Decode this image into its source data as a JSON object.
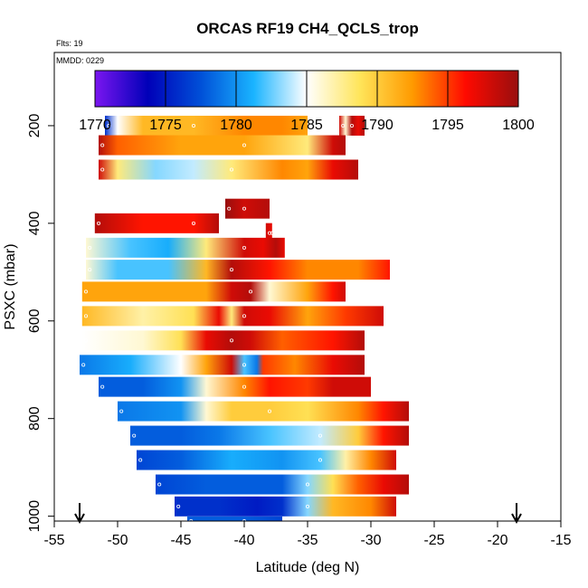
{
  "chart_data": {
    "type": "heatmap",
    "title": "ORCAS RF19 CH4_QCLS_trop",
    "flights_label": "Flts: 19",
    "date_label": "MMDD: 0229",
    "xlabel": "Latitude (deg N)",
    "ylabel": "PSXC (mbar)",
    "xlim": [
      -55,
      -15
    ],
    "ylim": [
      1010,
      50
    ],
    "xticks": [
      -55,
      -50,
      -45,
      -40,
      -35,
      -30,
      -25,
      -20,
      -15
    ],
    "yticks": [
      200,
      400,
      600,
      800,
      1000
    ],
    "colorbar": {
      "min": 1770,
      "max": 1800,
      "ticks": [
        1770,
        1775,
        1780,
        1785,
        1790,
        1795,
        1800
      ],
      "colors": [
        "#7b16f0",
        "#0000b8",
        "#0050d8",
        "#1ab4ff",
        "#ffffff",
        "#ffe55a",
        "#ff9a00",
        "#ff0a00",
        "#980e0e"
      ]
    },
    "arrows_lat": [
      -53.0,
      -18.5
    ],
    "layers": [
      {
        "pres": 200,
        "stops": [
          [
            -51,
            1776
          ],
          [
            -50,
            1785
          ],
          [
            -48,
            1791
          ],
          [
            -44,
            1791
          ],
          [
            -40,
            1793
          ],
          [
            -37,
            1793
          ],
          [
            -35,
            1792
          ]
        ]
      },
      {
        "pres": 200,
        "stops": [
          [
            -32.5,
            1798
          ],
          [
            -32,
            1786
          ],
          [
            -31.5,
            1799
          ],
          [
            -31,
            1797
          ],
          [
            -30.5,
            1799
          ]
        ]
      },
      {
        "pres": 240,
        "stops": [
          [
            -51.5,
            1799
          ],
          [
            -50,
            1794
          ],
          [
            -45,
            1792
          ],
          [
            -40,
            1792
          ],
          [
            -35,
            1788
          ],
          [
            -33,
            1798
          ],
          [
            -32,
            1799
          ]
        ]
      },
      {
        "pres": 290,
        "stops": [
          [
            -51.5,
            1798
          ],
          [
            -50,
            1788
          ],
          [
            -47,
            1783
          ],
          [
            -44,
            1784
          ],
          [
            -41,
            1788
          ],
          [
            -37,
            1793
          ],
          [
            -35,
            1792
          ],
          [
            -33,
            1797
          ],
          [
            -31,
            1799
          ]
        ]
      },
      {
        "pres": 370,
        "stops": [
          [
            -41.5,
            1800
          ],
          [
            -40,
            1798
          ],
          [
            -38,
            1799
          ]
        ]
      },
      {
        "pres": 400,
        "stops": [
          [
            -51.8,
            1799
          ],
          [
            -48,
            1796
          ],
          [
            -44,
            1796
          ],
          [
            -42,
            1799
          ]
        ]
      },
      {
        "pres": 420,
        "stops": [
          [
            -38.3,
            1798
          ],
          [
            -37.8,
            1797
          ]
        ]
      },
      {
        "pres": 450,
        "stops": [
          [
            -52.5,
            1786
          ],
          [
            -49,
            1782
          ],
          [
            -46,
            1781
          ],
          [
            -43,
            1788
          ],
          [
            -40,
            1798
          ],
          [
            -38.5,
            1797
          ],
          [
            -37.5,
            1799
          ],
          [
            -36.8,
            1797
          ]
        ]
      },
      {
        "pres": 495,
        "stops": [
          [
            -52.5,
            1786
          ],
          [
            -50,
            1782
          ],
          [
            -46,
            1782
          ],
          [
            -43,
            1791
          ],
          [
            -41,
            1799
          ],
          [
            -38,
            1796
          ],
          [
            -35,
            1793
          ],
          [
            -31,
            1793
          ],
          [
            -28.5,
            1796
          ]
        ]
      },
      {
        "pres": 540,
        "stops": [
          [
            -52.8,
            1792
          ],
          [
            -47,
            1792
          ],
          [
            -43,
            1792
          ],
          [
            -41,
            1798
          ],
          [
            -39.5,
            1799
          ],
          [
            -38,
            1786
          ],
          [
            -35,
            1792
          ],
          [
            -33,
            1796
          ],
          [
            -32,
            1798
          ]
        ]
      },
      {
        "pres": 590,
        "stops": [
          [
            -52.8,
            1791
          ],
          [
            -48,
            1787
          ],
          [
            -44,
            1789
          ],
          [
            -42,
            1797
          ],
          [
            -41,
            1788
          ],
          [
            -40,
            1798
          ],
          [
            -38,
            1797
          ],
          [
            -35,
            1792
          ],
          [
            -32,
            1795
          ],
          [
            -29,
            1798
          ]
        ]
      },
      {
        "pres": 640,
        "stops": [
          [
            -52.8,
            1785
          ],
          [
            -48,
            1786
          ],
          [
            -45,
            1789
          ],
          [
            -43,
            1797
          ],
          [
            -41,
            1799
          ],
          [
            -39.5,
            1798
          ],
          [
            -37,
            1794
          ],
          [
            -33,
            1796
          ],
          [
            -30.5,
            1799
          ]
        ]
      },
      {
        "pres": 690,
        "stops": [
          [
            -53,
            1779
          ],
          [
            -49,
            1781
          ],
          [
            -45,
            1785
          ],
          [
            -43,
            1792
          ],
          [
            -41,
            1798
          ],
          [
            -40,
            1782
          ],
          [
            -39,
            1779
          ],
          [
            -38.5,
            1795
          ],
          [
            -36,
            1793
          ],
          [
            -33,
            1797
          ],
          [
            -30.5,
            1799
          ]
        ]
      },
      {
        "pres": 735,
        "stops": [
          [
            -51.5,
            1778
          ],
          [
            -48,
            1778
          ],
          [
            -45,
            1780
          ],
          [
            -43,
            1786
          ],
          [
            -40,
            1793
          ],
          [
            -38,
            1796
          ],
          [
            -35,
            1795
          ],
          [
            -33,
            1798
          ],
          [
            -30,
            1798
          ]
        ]
      },
      {
        "pres": 785,
        "stops": [
          [
            -50,
            1779
          ],
          [
            -45,
            1780
          ],
          [
            -43,
            1786
          ],
          [
            -41,
            1790
          ],
          [
            -38,
            1790
          ],
          [
            -35,
            1789
          ],
          [
            -31,
            1793
          ],
          [
            -29,
            1796
          ],
          [
            -27,
            1799
          ]
        ]
      },
      {
        "pres": 835,
        "stops": [
          [
            -49,
            1778
          ],
          [
            -45,
            1778
          ],
          [
            -42,
            1779
          ],
          [
            -38,
            1782
          ],
          [
            -34,
            1784
          ],
          [
            -31,
            1790
          ],
          [
            -29,
            1796
          ],
          [
            -27,
            1799
          ]
        ]
      },
      {
        "pres": 885,
        "stops": [
          [
            -48.5,
            1777
          ],
          [
            -45,
            1778
          ],
          [
            -41,
            1781
          ],
          [
            -37,
            1780
          ],
          [
            -34,
            1782
          ],
          [
            -32,
            1787
          ],
          [
            -30,
            1793
          ],
          [
            -28,
            1798
          ]
        ]
      },
      {
        "pres": 935,
        "stops": [
          [
            -47,
            1777
          ],
          [
            -43,
            1778
          ],
          [
            -40,
            1778
          ],
          [
            -37,
            1778
          ],
          [
            -35,
            1783
          ],
          [
            -33,
            1789
          ],
          [
            -31,
            1794
          ],
          [
            -29,
            1797
          ],
          [
            -27,
            1799
          ]
        ]
      },
      {
        "pres": 980,
        "stops": [
          [
            -45.5,
            1776
          ],
          [
            -42,
            1776
          ],
          [
            -39,
            1775
          ],
          [
            -37,
            1776
          ],
          [
            -35,
            1783
          ],
          [
            -33,
            1791
          ],
          [
            -30,
            1793
          ],
          [
            -28,
            1798
          ]
        ]
      },
      {
        "pres": 1010,
        "stops": [
          [
            -44.5,
            1778
          ],
          [
            -40,
            1778
          ],
          [
            -37,
            1777
          ]
        ]
      }
    ]
  }
}
